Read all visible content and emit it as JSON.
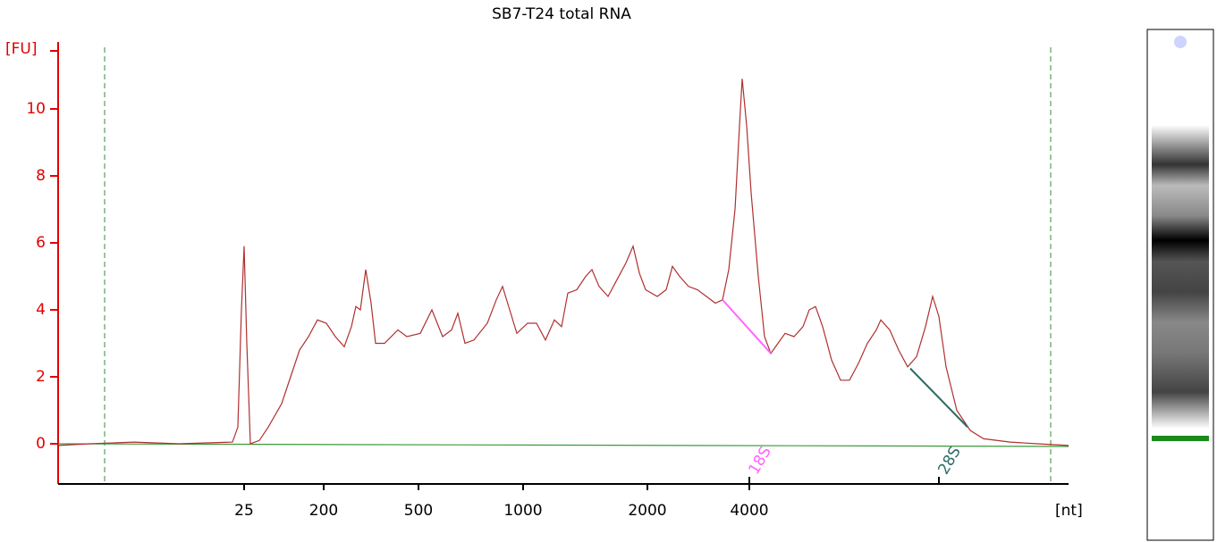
{
  "chart_data": {
    "type": "line",
    "title": "SB7-T24 total RNA",
    "y_label": "[FU]",
    "x_label": "[nt]",
    "xlim": [
      20,
      76.5
    ],
    "ylim": [
      -1.2,
      12
    ],
    "yticks": [
      0,
      2,
      4,
      6,
      8,
      10
    ],
    "xticks": [
      {
        "value": 30.4,
        "label": "25"
      },
      {
        "value": 34.85,
        "label": "200"
      },
      {
        "value": 40.15,
        "label": "500"
      },
      {
        "value": 46,
        "label": "1000"
      },
      {
        "value": 52.95,
        "label": "2000"
      },
      {
        "value": 58.65,
        "label": "4000"
      }
    ],
    "markers": [
      22.6,
      75.5
    ],
    "annotations": [
      {
        "text": "18S",
        "x": 58.65,
        "color": "#ff66ff"
      },
      {
        "text": "28S",
        "x": 69.25,
        "color": "#2e6b66"
      }
    ],
    "baseline": {
      "x": [
        20,
        76.5
      ],
      "values": [
        0,
        -0.08
      ],
      "color": "#3a9a3a"
    },
    "segments": [
      {
        "x": [
          57.15,
          59.85
        ],
        "values": [
          4.3,
          2.7
        ],
        "color": "#ff66ff"
      },
      {
        "x": [
          67.65,
          70.85
        ],
        "values": [
          2.25,
          0.5
        ],
        "color": "#2e6b66"
      }
    ],
    "series": [
      {
        "color": "#b03030",
        "x": [
          20,
          21.75,
          24.25,
          26.75,
          29.75,
          30.05,
          30.25,
          30.4,
          30.55,
          30.75,
          31.25,
          31.75,
          32.5,
          33,
          33.5,
          34,
          34.5,
          35,
          35.5,
          36,
          36.4,
          36.65,
          36.9,
          37.2,
          37.5,
          37.75,
          38.25,
          39,
          39.5,
          40.25,
          40.9,
          41.5,
          42,
          42.35,
          42.75,
          43.25,
          44,
          44.5,
          44.85,
          45.25,
          45.65,
          46.25,
          46.75,
          47.25,
          47.75,
          48.15,
          48.5,
          49,
          49.5,
          49.85,
          50.25,
          50.75,
          51.25,
          51.75,
          52.15,
          52.5,
          52.85,
          53.5,
          54,
          54.35,
          54.75,
          55.25,
          55.75,
          56.25,
          56.75,
          57.15,
          57.5,
          57.85,
          58.1,
          58.25,
          58.5,
          58.75,
          59.15,
          59.5,
          59.85,
          60.25,
          60.65,
          61.15,
          61.65,
          62,
          62.35,
          62.75,
          63.25,
          63.75,
          64.25,
          64.75,
          65.25,
          65.75,
          66,
          66.5,
          67,
          67.5,
          68,
          68.5,
          68.9,
          69.25,
          69.65,
          70.25,
          71,
          71.75,
          73.25,
          74.75,
          76.5
        ],
        "values": [
          -0.05,
          0,
          0.05,
          0,
          0.05,
          0.5,
          4,
          5.9,
          3,
          0,
          0.1,
          0.5,
          1.2,
          2,
          2.8,
          3.2,
          3.7,
          3.6,
          3.2,
          2.9,
          3.5,
          4.1,
          4.0,
          5.2,
          4.2,
          3.0,
          3.0,
          3.4,
          3.2,
          3.3,
          4.0,
          3.2,
          3.4,
          3.9,
          3.0,
          3.1,
          3.6,
          4.3,
          4.7,
          4.0,
          3.3,
          3.6,
          3.6,
          3.1,
          3.7,
          3.5,
          4.5,
          4.6,
          5.0,
          5.2,
          4.7,
          4.4,
          4.9,
          5.4,
          5.9,
          5.1,
          4.6,
          4.4,
          4.6,
          5.3,
          5.0,
          4.7,
          4.6,
          4.4,
          4.2,
          4.3,
          5.2,
          7,
          9.5,
          10.9,
          9.5,
          7.5,
          5,
          3.2,
          2.7,
          3.0,
          3.3,
          3.2,
          3.5,
          4.0,
          4.1,
          3.5,
          2.5,
          1.9,
          1.9,
          2.4,
          3.0,
          3.4,
          3.7,
          3.4,
          2.8,
          2.3,
          2.6,
          3.5,
          4.4,
          3.8,
          2.3,
          1.0,
          0.4,
          0.15,
          0.05,
          0,
          -0.05
        ]
      }
    ]
  }
}
